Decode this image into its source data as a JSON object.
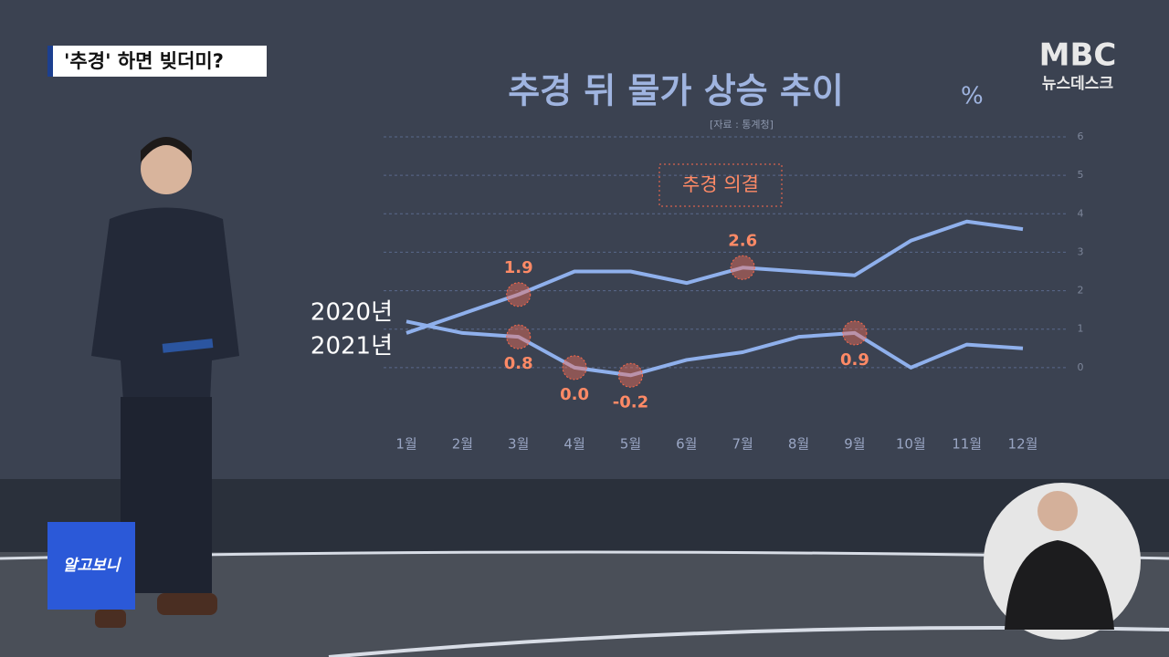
{
  "caption": "'추경' 하면 빚더미?",
  "logo": {
    "brand": "MBC",
    "program": "뉴스데스크"
  },
  "badge": "알고보니",
  "chart_data": {
    "type": "line",
    "title": "추경 뒤 물가 상승 추이",
    "unit": "%",
    "source": "[자료 : 통계청]",
    "annotation": "추경 의결",
    "categories": [
      "1월",
      "2월",
      "3월",
      "4월",
      "5월",
      "6월",
      "7월",
      "8월",
      "9월",
      "10월",
      "11월",
      "12월"
    ],
    "series": [
      {
        "name": "2020년",
        "color": "#8fb0ec",
        "values": [
          1.2,
          0.9,
          0.8,
          0.0,
          -0.2,
          0.2,
          0.4,
          0.8,
          0.9,
          0.0,
          0.6,
          0.5
        ],
        "value_labels": [
          null,
          null,
          "0.8",
          "0.0",
          "-0.2",
          null,
          null,
          null,
          "0.9",
          null,
          null,
          null
        ]
      },
      {
        "name": "2021년",
        "color": "#8fb0ec",
        "values": [
          0.9,
          1.4,
          1.9,
          2.5,
          2.5,
          2.2,
          2.6,
          2.5,
          2.4,
          3.3,
          3.8,
          3.6
        ],
        "value_labels": [
          null,
          null,
          "1.9",
          null,
          null,
          null,
          "2.6",
          null,
          null,
          null,
          null,
          null
        ]
      }
    ],
    "ylim": [
      -1,
      6
    ],
    "yticks": [
      0,
      1,
      2,
      3,
      4,
      5,
      6
    ],
    "grid": true
  }
}
